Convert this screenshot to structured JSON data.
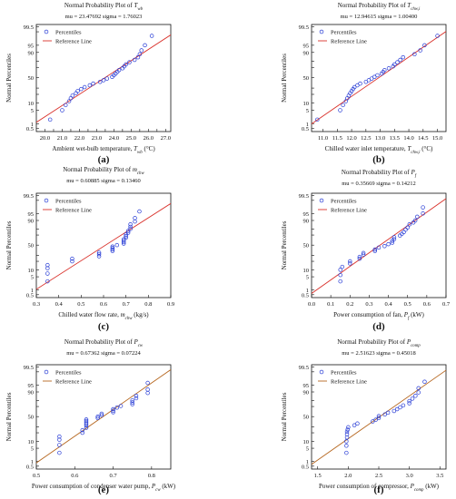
{
  "figure": {
    "panels": [
      {
        "tag": "(a)"
      },
      {
        "tag": "(b)"
      },
      {
        "tag": "(c)"
      },
      {
        "tag": "(d)"
      },
      {
        "tag": "(e)"
      },
      {
        "tag": "(f)"
      }
    ]
  },
  "chart_data": [
    {
      "type": "scatter",
      "title": "Normal Probability Plot of T_wb",
      "title_main": "Normal Probability Plot of ",
      "title_sym": "T",
      "title_sub": "wb",
      "subtitle": "mu = 23.47692  sigma = 1.76023",
      "xlabel_main": "Ambient wet-bulb temperature, ",
      "xlabel_sym": "T",
      "xlabel_sub": "wb",
      "xlabel_tail": " (°C)",
      "ylabel": "Normal Percentiles",
      "xlim": [
        19.5,
        27.3
      ],
      "xticks": [
        20.0,
        20.5,
        21.0,
        21.5,
        22.0,
        22.5,
        23.0,
        23.5,
        24.0,
        24.5,
        25.0,
        25.5,
        26.0,
        26.5,
        27.0
      ],
      "xtick_labels": [
        "20.0",
        "",
        "21.0",
        "",
        "22.0",
        "",
        "23.0",
        "",
        "24.0",
        "",
        "25.0",
        "",
        "26.0",
        "",
        "27.0"
      ],
      "yticks": [
        0.5,
        1,
        5,
        10,
        20,
        30,
        50,
        70,
        80,
        90,
        95,
        99,
        99.5
      ],
      "ytick_labels": [
        "0.5",
        "1",
        "5",
        "10",
        "",
        "",
        "50",
        "",
        "",
        "90",
        "95",
        "",
        "99.5"
      ],
      "ylim": [
        0.5,
        99.5
      ],
      "legend": [
        "Percentiles",
        "Reference Line"
      ],
      "legend_position": "top-left",
      "line_color": "#d9302a",
      "marker_color": "#2b3fd6",
      "mu": 23.47692,
      "sigma": 1.76023,
      "x": [
        20.3,
        21.0,
        21.2,
        21.4,
        21.5,
        21.6,
        21.8,
        21.9,
        22.1,
        22.3,
        22.6,
        22.8,
        23.2,
        23.4,
        23.6,
        23.9,
        24.0,
        24.1,
        24.2,
        24.3,
        24.5,
        24.6,
        24.7,
        24.9,
        25.2,
        25.4,
        25.5,
        25.6,
        25.8,
        26.2
      ],
      "y": [
        1.7,
        5.0,
        8.3,
        11.7,
        15.0,
        18.3,
        21.7,
        25.0,
        28.3,
        31.7,
        35.0,
        38.3,
        41.7,
        45.0,
        48.3,
        51.7,
        55.0,
        58.3,
        61.7,
        65.0,
        68.3,
        71.7,
        75.0,
        78.3,
        81.7,
        85.0,
        88.3,
        91.7,
        95.0,
        98.3
      ]
    },
    {
      "type": "scatter",
      "title": "Normal Probability Plot of T_chw,i",
      "title_main": "Normal Probability Plot of ",
      "title_sym": "T",
      "title_sub": "chw,i",
      "subtitle": "mu = 12.94615  sigma = 1.00400",
      "xlabel_main": "Chilled water inlet temperature, ",
      "xlabel_sym": "T",
      "xlabel_sub": "chw,i",
      "xlabel_tail": " (°C)",
      "ylabel": "Normal Percentiles",
      "xlim": [
        10.6,
        15.3
      ],
      "xticks": [
        11.0,
        11.5,
        12.0,
        12.5,
        13.0,
        13.5,
        14.0,
        14.5,
        15.0
      ],
      "xtick_labels": [
        "11.0",
        "11.5",
        "12.0",
        "12.5",
        "13.0",
        "13.5",
        "14.0",
        "14.5",
        "15.0"
      ],
      "yticks": [
        0.5,
        1,
        5,
        10,
        20,
        30,
        50,
        70,
        80,
        90,
        95,
        99,
        99.5
      ],
      "ytick_labels": [
        "0.5",
        "1",
        "5",
        "10",
        "",
        "",
        "50",
        "",
        "",
        "90",
        "95",
        "",
        "99.5"
      ],
      "ylim": [
        0.5,
        99.5
      ],
      "legend": [
        "Percentiles",
        "Reference Line"
      ],
      "legend_position": "top-left",
      "line_color": "#d9302a",
      "marker_color": "#2b3fd6",
      "mu": 12.94615,
      "sigma": 1.004,
      "x": [
        10.8,
        11.6,
        11.7,
        11.8,
        11.85,
        11.9,
        11.95,
        12.0,
        12.05,
        12.1,
        12.2,
        12.3,
        12.5,
        12.6,
        12.7,
        12.8,
        12.9,
        13.05,
        13.1,
        13.15,
        13.3,
        13.45,
        13.5,
        13.6,
        13.7,
        13.8,
        14.2,
        14.4,
        14.55,
        15.0
      ],
      "y": [
        1.7,
        5.0,
        8.3,
        11.7,
        15.0,
        18.3,
        21.7,
        25.0,
        28.3,
        31.7,
        35.0,
        38.3,
        41.7,
        45.0,
        48.3,
        51.7,
        55.0,
        58.3,
        61.7,
        65.0,
        68.3,
        71.7,
        75.0,
        78.3,
        81.7,
        85.0,
        88.3,
        91.7,
        95.0,
        98.3
      ]
    },
    {
      "type": "scatter",
      "title": "Normal Probability Plot of m_chw",
      "title_main": "Normal Probability Plot of ",
      "title_sym": "m",
      "title_sub": "chw",
      "subtitle": "mu = 0.60885  sigma = 0.13460",
      "xlabel_main": "Chilled water flow rate, ",
      "xlabel_sym": "m",
      "xlabel_sub": "chw",
      "xlabel_tail": " (kg/s)",
      "ylabel": "Normal Percentiles",
      "xlim": [
        0.3,
        0.9
      ],
      "xticks": [
        0.3,
        0.4,
        0.5,
        0.6,
        0.7,
        0.8,
        0.9
      ],
      "xtick_labels": [
        "0.3",
        "0.4",
        "0.5",
        "0.6",
        "0.7",
        "0.8",
        "0.9"
      ],
      "yticks": [
        0.5,
        1,
        5,
        10,
        20,
        30,
        50,
        70,
        80,
        90,
        95,
        99,
        99.5
      ],
      "ytick_labels": [
        "0.5",
        "1",
        "5",
        "10",
        "",
        "",
        "50",
        "",
        "",
        "90",
        "95",
        "",
        "99.5"
      ],
      "ylim": [
        0.5,
        99.5
      ],
      "legend": [
        "Percentiles",
        "Reference Line"
      ],
      "legend_position": "top-left",
      "line_color": "#d9302a",
      "marker_color": "#2b3fd6",
      "mu": 0.60885,
      "sigma": 0.1346,
      "x": [
        0.35,
        0.35,
        0.35,
        0.35,
        0.46,
        0.46,
        0.58,
        0.58,
        0.58,
        0.64,
        0.64,
        0.64,
        0.64,
        0.66,
        0.69,
        0.69,
        0.69,
        0.69,
        0.7,
        0.7,
        0.7,
        0.71,
        0.71,
        0.72,
        0.72,
        0.72,
        0.74,
        0.74,
        0.76
      ],
      "y": [
        3.0,
        7.0,
        11.5,
        15.0,
        20.0,
        24.0,
        28.0,
        32.0,
        35.0,
        38.0,
        41.0,
        44.0,
        47.0,
        50.0,
        53.0,
        56.0,
        59.0,
        62.0,
        65.0,
        68.0,
        71.0,
        74.0,
        77.0,
        80.0,
        83.0,
        86.0,
        89.0,
        92.0,
        96.0
      ]
    },
    {
      "type": "scatter",
      "title": "Normal Probability Plot of P_f",
      "title_main": "Normal Probability Plot of ",
      "title_sym": "P",
      "title_sub": "f",
      "subtitle": "mu = 0.35669  sigma = 0.14212",
      "xlabel_main": "Power consumption of fan, ",
      "xlabel_sym": "P",
      "xlabel_sub": "f",
      "xlabel_tail": " (kW)",
      "ylabel": "Normal Percentiles",
      "xlim": [
        0.0,
        0.7
      ],
      "xticks": [
        0.0,
        0.1,
        0.2,
        0.3,
        0.4,
        0.5,
        0.6,
        0.7
      ],
      "xtick_labels": [
        "0.0",
        "0.1",
        "0.2",
        "0.3",
        "0.4",
        "0.5",
        "0.6",
        "0.7"
      ],
      "yticks": [
        0.5,
        1,
        5,
        10,
        20,
        30,
        50,
        70,
        80,
        90,
        95,
        99,
        99.5
      ],
      "ytick_labels": [
        "0.5",
        "1",
        "5",
        "10",
        "",
        "",
        "50",
        "",
        "",
        "90",
        "95",
        "",
        "99.5"
      ],
      "ylim": [
        0.5,
        99.5
      ],
      "legend": [
        "Percentiles",
        "Reference Line"
      ],
      "legend_position": "top-left",
      "line_color": "#d9302a",
      "marker_color": "#2b3fd6",
      "mu": 0.35669,
      "sigma": 0.14212,
      "x": [
        0.15,
        0.15,
        0.15,
        0.16,
        0.2,
        0.2,
        0.25,
        0.25,
        0.27,
        0.27,
        0.33,
        0.33,
        0.35,
        0.38,
        0.4,
        0.42,
        0.42,
        0.43,
        0.43,
        0.46,
        0.47,
        0.48,
        0.49,
        0.5,
        0.51,
        0.53,
        0.54,
        0.55,
        0.58,
        0.58
      ],
      "y": [
        3.0,
        6.0,
        10.0,
        13.0,
        17.0,
        20.0,
        24.0,
        27.0,
        31.0,
        34.0,
        38.0,
        41.0,
        45.0,
        48.0,
        52.0,
        55.0,
        59.0,
        62.0,
        66.0,
        69.0,
        72.0,
        75.0,
        79.0,
        82.0,
        86.0,
        88.0,
        90.0,
        93.0,
        95.0,
        97.5
      ]
    },
    {
      "type": "scatter",
      "title": "Normal Probability Plot of P_cw",
      "title_main": "Normal Probability Plot of ",
      "title_sym": "P",
      "title_sub": "cw",
      "subtitle": "mu = 0.67362  sigma = 0.07224",
      "xlabel_main": "Power consumption of condenser water pump, ",
      "xlabel_sym": "P",
      "xlabel_sub": "cw",
      "xlabel_tail": " (kW)",
      "ylabel": "Normal Percentiles",
      "xlim": [
        0.5,
        0.85
      ],
      "xticks": [
        0.5,
        0.6,
        0.7,
        0.8
      ],
      "xtick_labels": [
        "0.5",
        "0.6",
        "0.7",
        "0.8"
      ],
      "yticks": [
        0.5,
        1,
        5,
        10,
        20,
        30,
        50,
        70,
        80,
        90,
        95,
        99,
        99.5
      ],
      "ytick_labels": [
        "0.5",
        "1",
        "5",
        "10",
        "",
        "",
        "50",
        "",
        "",
        "90",
        "95",
        "",
        "99.5"
      ],
      "ylim": [
        0.5,
        99.5
      ],
      "legend": [
        "Percentiles",
        "Reference Line"
      ],
      "legend_position": "top-left",
      "line_color": "#b5651d",
      "marker_color": "#2b3fd6",
      "mu": 0.67362,
      "sigma": 0.07224,
      "x": [
        0.56,
        0.56,
        0.56,
        0.56,
        0.62,
        0.62,
        0.63,
        0.63,
        0.63,
        0.63,
        0.63,
        0.63,
        0.66,
        0.66,
        0.67,
        0.67,
        0.7,
        0.7,
        0.7,
        0.71,
        0.72,
        0.75,
        0.75,
        0.75,
        0.76,
        0.76,
        0.79,
        0.79,
        0.79
      ],
      "y": [
        3.0,
        7.0,
        11.5,
        15.0,
        20.0,
        24.0,
        28.0,
        32.0,
        35.0,
        38.0,
        41.0,
        44.0,
        47.0,
        50.0,
        53.0,
        56.0,
        59.0,
        62.0,
        65.0,
        68.0,
        71.0,
        74.0,
        77.0,
        80.0,
        83.0,
        86.0,
        89.0,
        92.0,
        96.0
      ]
    },
    {
      "type": "scatter",
      "title": "Normal Probability Plot of P_comp",
      "title_main": "Normal Probability Plot of ",
      "title_sym": "P",
      "title_sub": "comp",
      "subtitle": "mu = 2.51623  sigma = 0.45018",
      "xlabel_main": "Power consumption of compressor, ",
      "xlabel_sym": "P",
      "xlabel_sub": "comp",
      "xlabel_tail": " (kW)",
      "ylabel": "Normal Percentiles",
      "xlim": [
        1.4,
        3.6
      ],
      "xticks": [
        1.5,
        2.0,
        2.5,
        3.0,
        3.5
      ],
      "xtick_labels": [
        "1.5",
        "2.0",
        "2.5",
        "3.0",
        "3.5"
      ],
      "yticks": [
        0.5,
        1,
        5,
        10,
        20,
        30,
        50,
        70,
        80,
        90,
        95,
        99,
        99.5
      ],
      "ytick_labels": [
        "0.5",
        "1",
        "5",
        "10",
        "",
        "",
        "50",
        "",
        "",
        "90",
        "95",
        "",
        "99.5"
      ],
      "ylim": [
        0.5,
        99.5
      ],
      "legend": [
        "Percentiles",
        "Reference Line"
      ],
      "legend_position": "top-left",
      "line_color": "#b5651d",
      "marker_color": "#2b3fd6",
      "mu": 2.51623,
      "sigma": 0.45018,
      "x": [
        1.97,
        1.97,
        1.97,
        1.98,
        1.98,
        1.98,
        1.99,
        2.0,
        2.1,
        2.15,
        2.4,
        2.45,
        2.5,
        2.5,
        2.6,
        2.65,
        2.75,
        2.8,
        2.85,
        2.9,
        3.0,
        3.0,
        3.05,
        3.1,
        3.15,
        3.15,
        3.25
      ],
      "y": [
        3.0,
        6.5,
        10.0,
        14.0,
        18.0,
        21.5,
        25.0,
        29.0,
        32.5,
        36.0,
        40.0,
        43.5,
        47.0,
        51.0,
        54.5,
        58.0,
        61.5,
        65.0,
        68.5,
        72.0,
        75.5,
        79.0,
        82.5,
        86.0,
        89.5,
        93.0,
        96.5
      ]
    }
  ]
}
